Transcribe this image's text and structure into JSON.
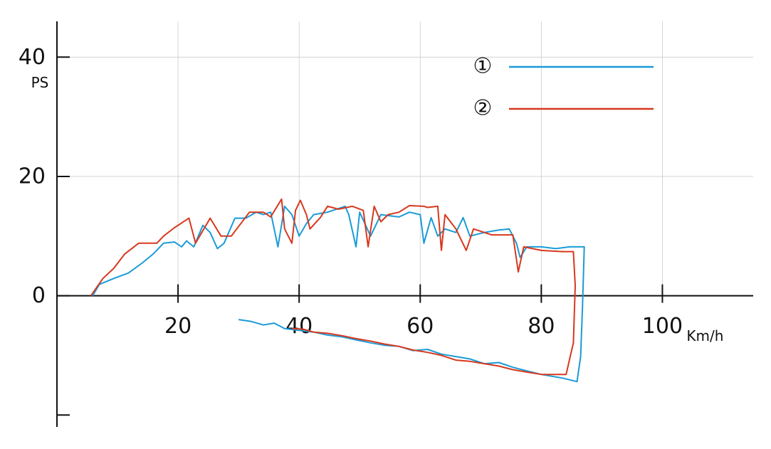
{
  "chart_data": {
    "type": "line",
    "x_label": "Km/h",
    "y_label": "PS",
    "xlim": [
      0,
      115
    ],
    "ylim": [
      -22,
      46
    ],
    "xticks": [
      20,
      40,
      60,
      80,
      100
    ],
    "yticks": [
      0,
      20,
      40
    ],
    "y_unlabeled_ticks": [
      -20
    ],
    "grid": true,
    "legend": "upper right",
    "series": [
      {
        "name": "①",
        "color": "#1a9bd7",
        "x": [
          5.9,
          7,
          9.4,
          11.8,
          14.1,
          15.9,
          17.6,
          19.4,
          20.6,
          21.4,
          22.6,
          24.1,
          25.3,
          26.5,
          27.6,
          29.4,
          31.2,
          32.9,
          34.1,
          35.3,
          36.5,
          37.6,
          38.8,
          40,
          41.2,
          42.4,
          44.7,
          47.6,
          48.2,
          49.4,
          50,
          51.8,
          53.5,
          56.5,
          58.2,
          60,
          60.6,
          61.8,
          62.9,
          64.1,
          65.9,
          67.1,
          68.2,
          70.6,
          72.9,
          74.7,
          75.9,
          76.5,
          77.6,
          80,
          82.4,
          84.7,
          86.5,
          87.1,
          86.8,
          86.5,
          85.9,
          83.5,
          80,
          77.6,
          75.3,
          73,
          70.6,
          68.2,
          65.9,
          63.5,
          61.2,
          58.8,
          56.5,
          54.1,
          51.8,
          49.4,
          47.1,
          44.7,
          42.4,
          40,
          37.6,
          35.9,
          34.1,
          32,
          30
        ],
        "values": [
          0,
          1.9,
          2.9,
          3.8,
          5.5,
          7,
          8.8,
          9,
          8.2,
          9.2,
          8.2,
          11.8,
          10.6,
          7.9,
          8.8,
          13,
          13,
          14,
          13.6,
          14,
          8.2,
          15,
          13.6,
          10,
          12.1,
          13.6,
          14,
          15,
          13.6,
          8.2,
          14,
          10,
          13.6,
          13.2,
          14,
          13.6,
          8.8,
          13.1,
          10,
          11.2,
          10.6,
          13.1,
          10,
          10.6,
          11,
          11.2,
          8.8,
          6.4,
          8.2,
          8.2,
          7.9,
          8.2,
          8.2,
          8.2,
          -1.9,
          -10.2,
          -14.4,
          -13.8,
          -13.2,
          -12.6,
          -12,
          -11.2,
          -11.4,
          -10.6,
          -10.2,
          -9.8,
          -9,
          -9.2,
          -8.5,
          -8.3,
          -7.9,
          -7.4,
          -6.9,
          -6.6,
          -6.1,
          -5.8,
          -5.5,
          -4.6,
          -4.9,
          -4.3,
          -4
        ]
      },
      {
        "name": "②",
        "color": "#d7381e",
        "x": [
          5.6,
          7.6,
          9.4,
          11.2,
          13.5,
          16.5,
          17.6,
          19.4,
          21.8,
          22.9,
          25.3,
          27.1,
          28.8,
          31.8,
          34.1,
          35.3,
          37.1,
          37.6,
          38.8,
          39.4,
          40.2,
          41.2,
          41.8,
          43.5,
          44.7,
          46.5,
          48.8,
          50.6,
          51.4,
          52.4,
          53.5,
          54.7,
          56.5,
          58.2,
          60.6,
          61.2,
          62.9,
          63.5,
          64.1,
          65.9,
          67.6,
          68.8,
          71.8,
          75.3,
          76.2,
          77.1,
          80,
          83.5,
          85.3,
          85.6,
          85.3,
          84.1,
          80,
          77.6,
          75.3,
          73,
          70.6,
          68.2,
          65.9,
          63.5,
          61.2,
          58.8,
          56.5,
          54.1,
          51.8,
          49.4,
          47.1,
          44.7,
          42.4,
          40.6,
          38.8
        ],
        "values": [
          0,
          2.9,
          4.6,
          7,
          8.8,
          8.8,
          10,
          11.4,
          13,
          8.8,
          13,
          10,
          10,
          14,
          14,
          13.2,
          16.2,
          11.2,
          8.8,
          14.3,
          16,
          13.6,
          11.2,
          13.1,
          15,
          14.5,
          15,
          14.3,
          8.2,
          15,
          12.4,
          13.6,
          14,
          15.1,
          15,
          14.8,
          15,
          7.6,
          13.6,
          11.2,
          7.6,
          11.2,
          10.2,
          10.2,
          4,
          8.2,
          7.6,
          7.4,
          7.4,
          1.7,
          -7.9,
          -13.2,
          -13.2,
          -12.8,
          -12.4,
          -11.8,
          -11.4,
          -11,
          -10.8,
          -10,
          -9.5,
          -9.1,
          -8.5,
          -8.1,
          -7.6,
          -7.2,
          -6.7,
          -6.3,
          -6.1,
          -5.6,
          -5.5
        ]
      }
    ]
  }
}
